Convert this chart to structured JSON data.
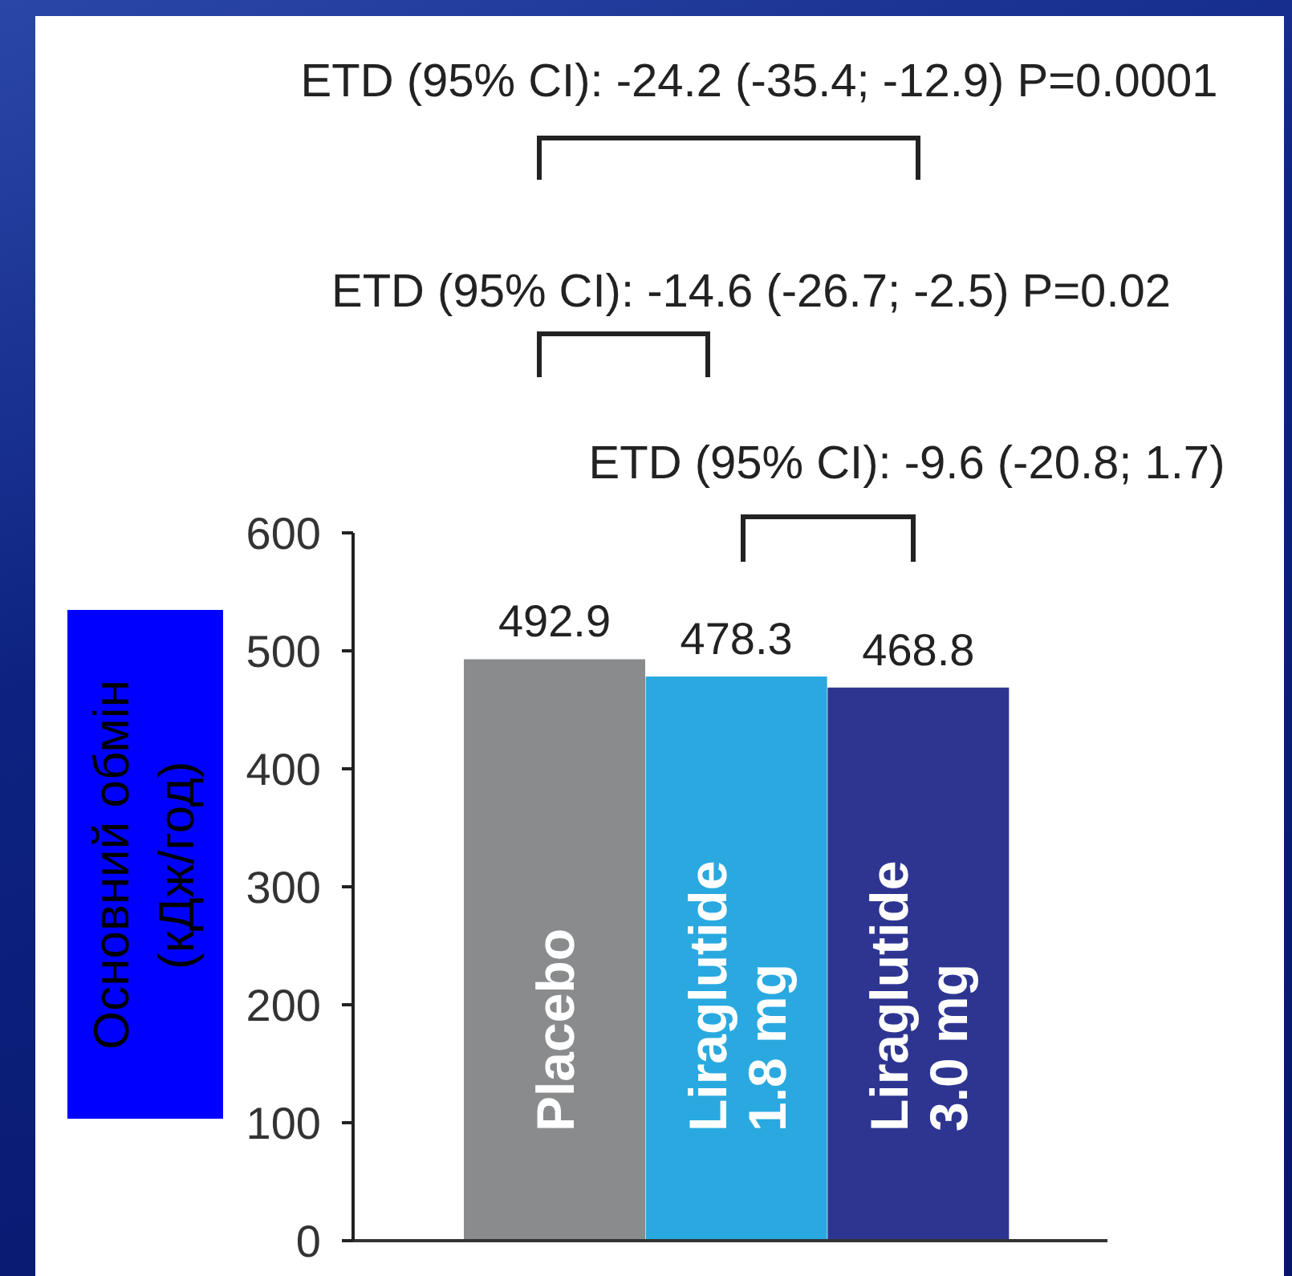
{
  "chart_data": {
    "type": "bar",
    "categories": [
      "Placebo",
      "Liraglutide 1.8 mg",
      "Liraglutide 3.0 mg"
    ],
    "values": [
      492.9,
      478.3,
      468.8
    ],
    "colors": [
      "#898b8d",
      "#29a9e0",
      "#2e3591"
    ],
    "ylabel": "Основний обмін (кДж/год)",
    "ylim": [
      0,
      600
    ],
    "yticks": [
      0,
      100,
      200,
      300,
      400,
      500,
      600
    ],
    "data_labels": true,
    "annotations": [
      "ETD (95% CI): -24.2 (-35.4; -12.9) P=0.0001",
      "ETD (95% CI): -14.6 (-26.7; -2.5) P=0.02",
      "ETD (95% CI): -9.6 (-20.8; 1.7)"
    ]
  }
}
